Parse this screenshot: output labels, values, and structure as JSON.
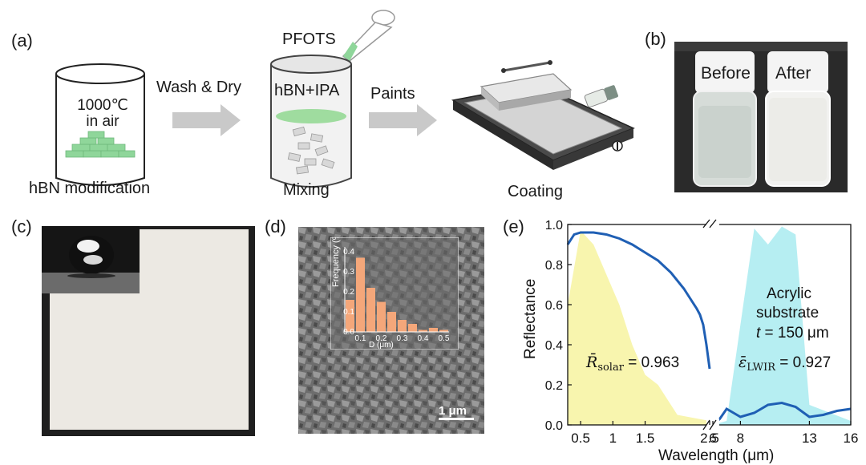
{
  "figure": {
    "panel_a": {
      "label": "(a)",
      "beaker_text_line1": "1000℃",
      "beaker_text_line2": "in air",
      "step1_caption": "hBN modification",
      "arrow1_label": "Wash & Dry",
      "pipette_label": "PFOTS",
      "mix_text": "hBN+IPA",
      "step2_caption": "Mixing",
      "arrow2_label": "Paints",
      "step3_caption": "Coating"
    },
    "panel_b": {
      "label": "(b)",
      "bottle1": "Before",
      "bottle2": "After"
    },
    "panel_c": {
      "label": "(c)"
    },
    "panel_d": {
      "label": "(d)",
      "scale_bar": "1 μm",
      "inset_ylabel": "Frequency (%)",
      "inset_xlabel": "D (μm)",
      "inset_yticks": [
        "0.0",
        "0.1",
        "0.2",
        "0.3",
        "0.4"
      ],
      "inset_xticks": [
        "0.1",
        "0.2",
        "0.3",
        "0.4",
        "0.5"
      ]
    },
    "panel_e": {
      "label": "(e)",
      "ylabel": "Reflectance",
      "xlabel": "Wavelength (μm)",
      "yticks": [
        "0.0",
        "0.2",
        "0.4",
        "0.6",
        "0.8",
        "1.0"
      ],
      "xticks_left": [
        "0.5",
        "1",
        "1.5",
        "2.5"
      ],
      "xticks_right": [
        "6",
        "8",
        "13",
        "16"
      ],
      "annotation_line1": "Acrylic",
      "annotation_line2": "substrate",
      "annotation_t_symbol": "t",
      "annotation_t_value": " = 150 μm",
      "r_solar_symbol": "R̄",
      "r_solar_sub": "solar",
      "r_solar_value": " = 0.963",
      "e_lwir_symbol": "ε̄",
      "e_lwir_sub": "LWIR",
      "e_lwir_value": " = 0.927"
    }
  },
  "chart_data": {
    "type": "line",
    "xlabel": "Wavelength (μm)",
    "ylabel": "Reflectance",
    "ylim": [
      0,
      1.0
    ],
    "xaxis": "broken axis: 0.3–2.5 μm and 6–16 μm",
    "series": [
      {
        "x": [
          0.3,
          0.4,
          0.5,
          0.7,
          0.9,
          1.1,
          1.3,
          1.5,
          1.7,
          1.9,
          2.1,
          2.2,
          2.3,
          2.35,
          2.4,
          2.45,
          2.5
        ],
        "values": [
          0.9,
          0.95,
          0.96,
          0.96,
          0.95,
          0.93,
          0.9,
          0.86,
          0.82,
          0.76,
          0.68,
          0.63,
          0.58,
          0.55,
          0.5,
          0.4,
          0.28
        ]
      },
      {
        "x": [
          6,
          6.5,
          7,
          7.5,
          8,
          9,
          10,
          11,
          12,
          13,
          14,
          15,
          16
        ],
        "values": [
          0.0,
          0.03,
          0.08,
          0.06,
          0.04,
          0.06,
          0.1,
          0.11,
          0.09,
          0.04,
          0.05,
          0.07,
          0.08
        ]
      }
    ],
    "bands": [
      {
        "x": [
          0.3,
          0.5,
          0.7,
          0.9,
          1.1,
          1.3,
          1.5,
          1.7,
          2.0,
          2.5
        ],
        "values": [
          0.6,
          0.97,
          0.9,
          0.75,
          0.6,
          0.4,
          0.25,
          0.2,
          0.05,
          0.02
        ]
      },
      {
        "x": [
          6,
          7,
          8,
          9,
          10,
          11,
          12,
          13,
          16
        ],
        "values": [
          0.0,
          0.02,
          0.5,
          0.98,
          0.9,
          0.99,
          0.95,
          0.1,
          0.02
        ]
      }
    ]
  },
  "chart_data_inset": {
    "type": "bar",
    "xlabel": "D (μm)",
    "ylabel": "Frequency (%)",
    "ylim": [
      0,
      0.4
    ],
    "categories": [
      "0.05",
      "0.1",
      "0.15",
      "0.2",
      "0.25",
      "0.3",
      "0.35",
      "0.4",
      "0.45",
      "0.5"
    ],
    "values": [
      0.16,
      0.37,
      0.22,
      0.15,
      0.1,
      0.06,
      0.04,
      0.01,
      0.02,
      0.01
    ]
  },
  "colors": {
    "green": "#8fd69a",
    "curve": "#1f5fb4",
    "solar_band": "#f7f3a0",
    "lwir_band": "#a9ebf0",
    "inset_bar": "#f4a77a",
    "sem_bg": "#6f6f6f",
    "photo_bg": "#2a2a2a"
  }
}
